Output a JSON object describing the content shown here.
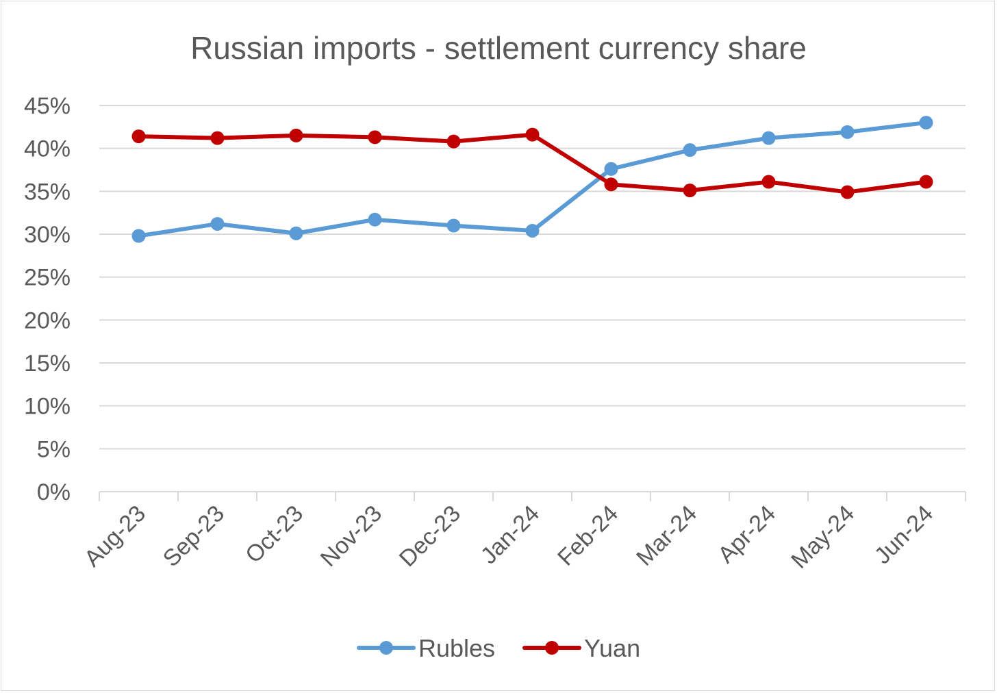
{
  "chart_data": {
    "type": "line",
    "title": "Russian imports - settlement currency share",
    "xlabel": "",
    "ylabel": "",
    "categories": [
      "Aug-23",
      "Sep-23",
      "Oct-23",
      "Nov-23",
      "Dec-23",
      "Jan-24",
      "Feb-24",
      "Mar-24",
      "Apr-24",
      "May-24",
      "Jun-24"
    ],
    "y_ticks": [
      "0%",
      "5%",
      "10%",
      "15%",
      "20%",
      "25%",
      "30%",
      "35%",
      "40%",
      "45%"
    ],
    "ylim": [
      0,
      45
    ],
    "grid": true,
    "legend_position": "bottom",
    "series": [
      {
        "name": "Rubles",
        "color": "#5b9bd5",
        "values": [
          29.8,
          31.2,
          30.1,
          31.7,
          31.0,
          30.4,
          37.6,
          39.8,
          41.2,
          41.9,
          43.0
        ]
      },
      {
        "name": "Yuan",
        "color": "#c00000",
        "values": [
          41.4,
          41.2,
          41.5,
          41.3,
          40.8,
          41.6,
          35.8,
          35.1,
          36.1,
          34.9,
          36.1
        ]
      }
    ]
  }
}
